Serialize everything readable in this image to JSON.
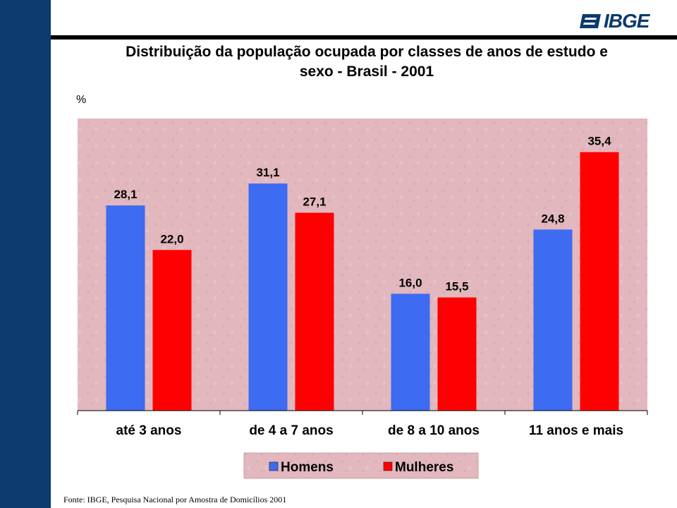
{
  "logo": {
    "text": "IBGE"
  },
  "source": "Fonte: IBGE, Pesquisa Nacional por Amostra de Domicílios 2001",
  "colors": {
    "sidebar": "#0b3a6e",
    "homens": "#3d6bf2",
    "mulheres": "#ff0000",
    "plot_bg": "#e2b7be"
  },
  "chart_data": {
    "type": "bar",
    "title_lines": [
      "Distribuição da população ocupada por classes de anos de estudo e",
      "sexo - Brasil - 2001"
    ],
    "ylabel": "%",
    "xlabel": "",
    "categories": [
      "até 3 anos",
      "de 4 a 7 anos",
      "de 8 a 10 anos",
      "11 anos e mais"
    ],
    "series": [
      {
        "name": "Homens",
        "values": [
          28.1,
          31.1,
          16.0,
          24.8
        ],
        "labels": [
          "28,1",
          "31,1",
          "16,0",
          "24,8"
        ],
        "color": "#3d6bf2"
      },
      {
        "name": "Mulheres",
        "values": [
          22.0,
          27.1,
          15.5,
          35.4
        ],
        "labels": [
          "22,0",
          "27,1",
          "15,5",
          "35,4"
        ],
        "color": "#ff0000"
      }
    ],
    "ylim": [
      0,
      40
    ],
    "grid": false,
    "legend_position": "bottom"
  }
}
